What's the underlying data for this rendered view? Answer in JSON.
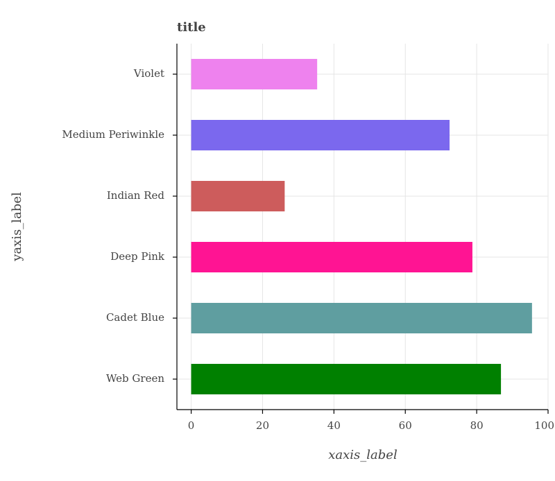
{
  "chart_data": {
    "type": "bar",
    "orientation": "horizontal",
    "title": "title",
    "x_label": "xaxis_label",
    "y_label": "yaxis_label",
    "categories": [
      "Web Green",
      "Cadet Blue",
      "Deep Pink",
      "Indian Red",
      "Medium Periwinkle",
      "Violet"
    ],
    "values": [
      86.8,
      95.5,
      78.8,
      26.2,
      72.4,
      35.3
    ],
    "colors": [
      "#008000",
      "#5f9ea0",
      "#ff1493",
      "#cd5c5c",
      "#7b68ee",
      "#ee82ee"
    ],
    "xlim": [
      -4,
      100
    ],
    "xticks": [
      0,
      20,
      40,
      60,
      80,
      100
    ],
    "grid": true
  }
}
